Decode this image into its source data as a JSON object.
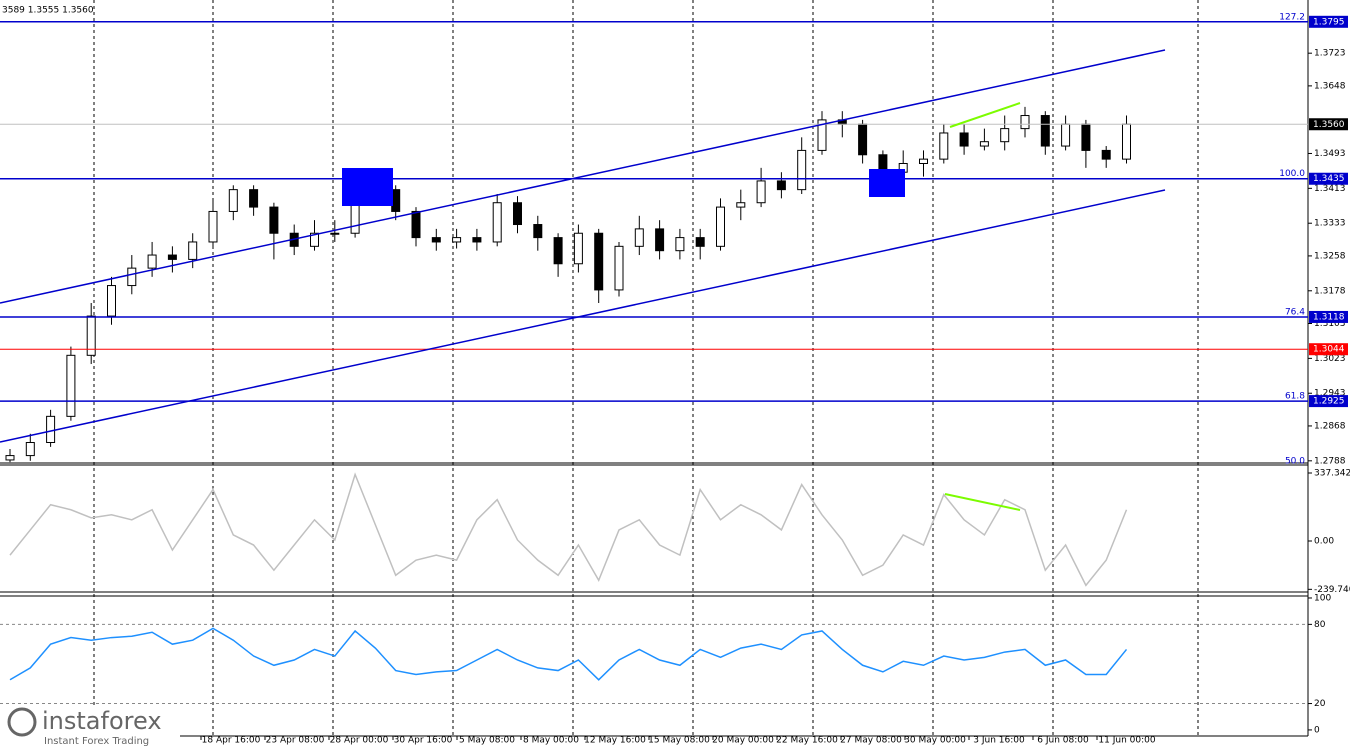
{
  "header": "3589 1.3555 1.3560",
  "watermark": {
    "brand": "instaforex",
    "tagline": "Instant Forex Trading"
  },
  "chart_data": [
    {
      "type": "candlestick",
      "ylim": [
        1.2783,
        1.3845
      ],
      "yticks": [
        1.3723,
        1.3648,
        1.3493,
        1.3413,
        1.3333,
        1.3258,
        1.3178,
        1.3103,
        1.3023,
        1.2943,
        1.2868,
        1.2788
      ],
      "up_color": "#ffffff",
      "down_color": "#000000",
      "open": [
        1.279,
        1.28,
        1.283,
        1.289,
        1.303,
        1.312,
        1.319,
        1.323,
        1.326,
        1.325,
        1.329,
        1.336,
        1.341,
        1.337,
        1.331,
        1.328,
        1.331,
        1.331,
        1.343,
        1.341,
        1.336,
        1.33,
        1.329,
        1.33,
        1.329,
        1.338,
        1.333,
        1.33,
        1.324,
        1.331,
        1.318,
        1.328,
        1.332,
        1.327,
        1.33,
        1.328,
        1.337,
        1.338,
        1.343,
        1.341,
        1.35,
        1.357,
        1.356,
        1.349,
        1.345,
        1.347,
        1.348,
        1.354,
        1.351,
        1.352,
        1.355,
        1.358,
        1.351,
        1.356,
        1.35,
        1.348
      ],
      "high": [
        1.2815,
        1.285,
        1.2905,
        1.305,
        1.315,
        1.321,
        1.326,
        1.329,
        1.328,
        1.331,
        1.339,
        1.342,
        1.342,
        1.338,
        1.333,
        1.334,
        1.334,
        1.344,
        1.3445,
        1.342,
        1.337,
        1.332,
        1.332,
        1.332,
        1.34,
        1.3395,
        1.335,
        1.331,
        1.333,
        1.332,
        1.329,
        1.335,
        1.334,
        1.332,
        1.332,
        1.339,
        1.341,
        1.346,
        1.345,
        1.353,
        1.359,
        1.359,
        1.357,
        1.35,
        1.35,
        1.35,
        1.356,
        1.356,
        1.355,
        1.358,
        1.36,
        1.359,
        1.358,
        1.357,
        1.351,
        1.358
      ],
      "low": [
        1.2785,
        1.2788,
        1.282,
        1.288,
        1.301,
        1.31,
        1.317,
        1.321,
        1.322,
        1.323,
        1.328,
        1.334,
        1.335,
        1.325,
        1.326,
        1.327,
        1.329,
        1.33,
        1.339,
        1.334,
        1.328,
        1.327,
        1.3275,
        1.327,
        1.328,
        1.331,
        1.327,
        1.321,
        1.322,
        1.315,
        1.3165,
        1.326,
        1.325,
        1.325,
        1.325,
        1.327,
        1.334,
        1.337,
        1.339,
        1.34,
        1.349,
        1.353,
        1.347,
        1.341,
        1.342,
        1.344,
        1.347,
        1.349,
        1.35,
        1.35,
        1.353,
        1.349,
        1.35,
        1.346,
        1.346,
        1.347
      ],
      "close": [
        1.28,
        1.283,
        1.289,
        1.303,
        1.312,
        1.319,
        1.323,
        1.326,
        1.325,
        1.329,
        1.336,
        1.341,
        1.337,
        1.331,
        1.328,
        1.331,
        1.331,
        1.343,
        1.341,
        1.336,
        1.33,
        1.329,
        1.33,
        1.329,
        1.338,
        1.333,
        1.33,
        1.324,
        1.331,
        1.318,
        1.328,
        1.332,
        1.327,
        1.33,
        1.328,
        1.337,
        1.338,
        1.343,
        1.341,
        1.35,
        1.357,
        1.356,
        1.349,
        1.345,
        1.347,
        1.348,
        1.354,
        1.351,
        1.352,
        1.355,
        1.358,
        1.351,
        1.356,
        1.35,
        1.348,
        1.356
      ],
      "level_color": "#0000cc",
      "levels": [
        {
          "name": "127.2",
          "value": 1.3795
        },
        {
          "name": "100.0",
          "value": 1.3435
        },
        {
          "name": "76.4",
          "value": 1.3118
        },
        {
          "name": "61.8",
          "value": 1.2925
        },
        {
          "name": "50.0",
          "value": 1.2768
        }
      ],
      "lines": [
        {
          "value": 1.3044,
          "color": "#ff0000"
        }
      ],
      "current": {
        "value": 1.356,
        "label": "1.3560"
      },
      "time_labels": [
        "18 Apr 16:00",
        "23 Apr 08:00",
        "28 Apr 00:00",
        "30 Apr 16:00",
        "5 May 08:00",
        "8 May 00:00",
        "12 May 16:00",
        "15 May 08:00",
        "20 May 00:00",
        "22 May 16:00",
        "27 May 08:00",
        "30 May 00:00",
        "3 Jun 16:00",
        "6 Jun 08:00",
        "11 Jun 00:00"
      ]
    },
    {
      "type": "line",
      "ylim": [
        -253,
        377
      ],
      "yticks": [
        337.3422,
        {
          "value": 0,
          "label": "0.00"
        },
        {
          "value": -239.74,
          "label": "-239.7400"
        }
      ],
      "color": "#c0c0c0",
      "values": [
        -70,
        55,
        180,
        155,
        115,
        130,
        105,
        155,
        -45,
        105,
        255,
        30,
        -20,
        -145,
        -20,
        105,
        5,
        330,
        80,
        -170,
        -95,
        -70,
        -95,
        105,
        205,
        5,
        -95,
        -170,
        -20,
        -195,
        55,
        105,
        -20,
        -70,
        255,
        105,
        180,
        130,
        55,
        280,
        130,
        5,
        -170,
        -120,
        30,
        -20,
        230,
        105,
        30,
        205,
        155,
        -145,
        -20,
        -220,
        -95,
        155
      ]
    },
    {
      "type": "line",
      "ylim": [
        -4.6,
        101.5
      ],
      "yticks": [
        100,
        80,
        20,
        0
      ],
      "levels": [
        80,
        20
      ],
      "color": "#1e90ff",
      "values": [
        38,
        47,
        65,
        70,
        68,
        70,
        71,
        74,
        65,
        68,
        77,
        68,
        56,
        49,
        53,
        61,
        56,
        75,
        62,
        45,
        42,
        44,
        45,
        53,
        61,
        53,
        47,
        45,
        53,
        38,
        53,
        61,
        53,
        49,
        61,
        55,
        62,
        65,
        61,
        72,
        75,
        61,
        49,
        44,
        52,
        49,
        56,
        53,
        55,
        59,
        61,
        49,
        53,
        42,
        42,
        61
      ]
    }
  ]
}
